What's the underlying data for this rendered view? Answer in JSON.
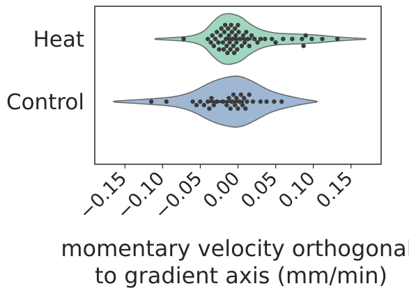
{
  "chart_data": {
    "type": "violin-swarm",
    "title": "",
    "xlabel_lines": [
      "momentary velocity orthogonal",
      "to gradient axis (mm/min)"
    ],
    "ylabel": "",
    "xlim": [
      -0.19,
      0.19
    ],
    "xticks": [
      {
        "value": -0.15,
        "label": "−0.15"
      },
      {
        "value": -0.1,
        "label": "−0.10"
      },
      {
        "value": -0.05,
        "label": "−0.05"
      },
      {
        "value": 0.0,
        "label": "0.00"
      },
      {
        "value": 0.05,
        "label": "0.05"
      },
      {
        "value": 0.1,
        "label": "0.10"
      },
      {
        "value": 0.15,
        "label": "0.15"
      }
    ],
    "grid": false,
    "orientation": "horizontal",
    "groups": [
      {
        "name": "Heat",
        "fill": "#9fd6bf",
        "violin_range": [
          -0.11,
          0.17
        ],
        "density": [
          [
            -0.11,
            0.02
          ],
          [
            -0.08,
            0.06
          ],
          [
            -0.06,
            0.12
          ],
          [
            -0.045,
            0.28
          ],
          [
            -0.035,
            0.62
          ],
          [
            -0.025,
            0.9
          ],
          [
            -0.015,
            1.0
          ],
          [
            -0.005,
            0.96
          ],
          [
            0.005,
            0.85
          ],
          [
            0.015,
            0.6
          ],
          [
            0.03,
            0.35
          ],
          [
            0.05,
            0.22
          ],
          [
            0.07,
            0.2
          ],
          [
            0.09,
            0.18
          ],
          [
            0.11,
            0.14
          ],
          [
            0.13,
            0.08
          ],
          [
            0.15,
            0.04
          ],
          [
            0.17,
            0.015
          ]
        ],
        "points": [
          -0.072,
          -0.04,
          -0.036,
          -0.034,
          -0.032,
          -0.03,
          -0.028,
          -0.026,
          -0.025,
          -0.023,
          -0.022,
          -0.02,
          -0.019,
          -0.018,
          -0.017,
          -0.016,
          -0.015,
          -0.014,
          -0.013,
          -0.012,
          -0.011,
          -0.01,
          -0.009,
          -0.008,
          -0.007,
          -0.006,
          -0.005,
          -0.004,
          -0.003,
          -0.002,
          -0.001,
          0.0,
          0.001,
          0.003,
          0.005,
          0.007,
          0.009,
          0.011,
          0.013,
          0.015,
          0.018,
          0.022,
          0.026,
          0.03,
          0.036,
          0.045,
          0.05,
          0.06,
          0.072,
          0.085,
          0.087,
          0.09,
          0.098,
          0.112,
          0.132
        ]
      },
      {
        "name": "Control",
        "fill": "#9fb7d3",
        "violin_range": [
          -0.165,
          0.105
        ],
        "density": [
          [
            -0.165,
            0.02
          ],
          [
            -0.14,
            0.06
          ],
          [
            -0.12,
            0.1
          ],
          [
            -0.09,
            0.16
          ],
          [
            -0.07,
            0.28
          ],
          [
            -0.055,
            0.45
          ],
          [
            -0.04,
            0.7
          ],
          [
            -0.025,
            0.88
          ],
          [
            -0.01,
            0.98
          ],
          [
            0.0,
            1.0
          ],
          [
            0.01,
            0.92
          ],
          [
            0.025,
            0.7
          ],
          [
            0.04,
            0.45
          ],
          [
            0.055,
            0.3
          ],
          [
            0.07,
            0.2
          ],
          [
            0.085,
            0.1
          ],
          [
            0.105,
            0.02
          ]
        ],
        "points": [
          -0.115,
          -0.095,
          -0.06,
          -0.055,
          -0.05,
          -0.045,
          -0.04,
          -0.038,
          -0.035,
          -0.032,
          -0.028,
          -0.02,
          -0.015,
          -0.012,
          -0.01,
          -0.008,
          -0.006,
          -0.004,
          -0.002,
          0.0,
          0.002,
          0.004,
          0.006,
          0.008,
          0.01,
          0.012,
          0.015,
          0.02,
          0.03,
          0.038,
          0.048,
          0.058
        ]
      }
    ],
    "colors": {
      "axis": "#262626",
      "violin_outline": "#6b6b6b",
      "point": "#3b3b3b",
      "inner_line": "#3a3a3a"
    }
  }
}
